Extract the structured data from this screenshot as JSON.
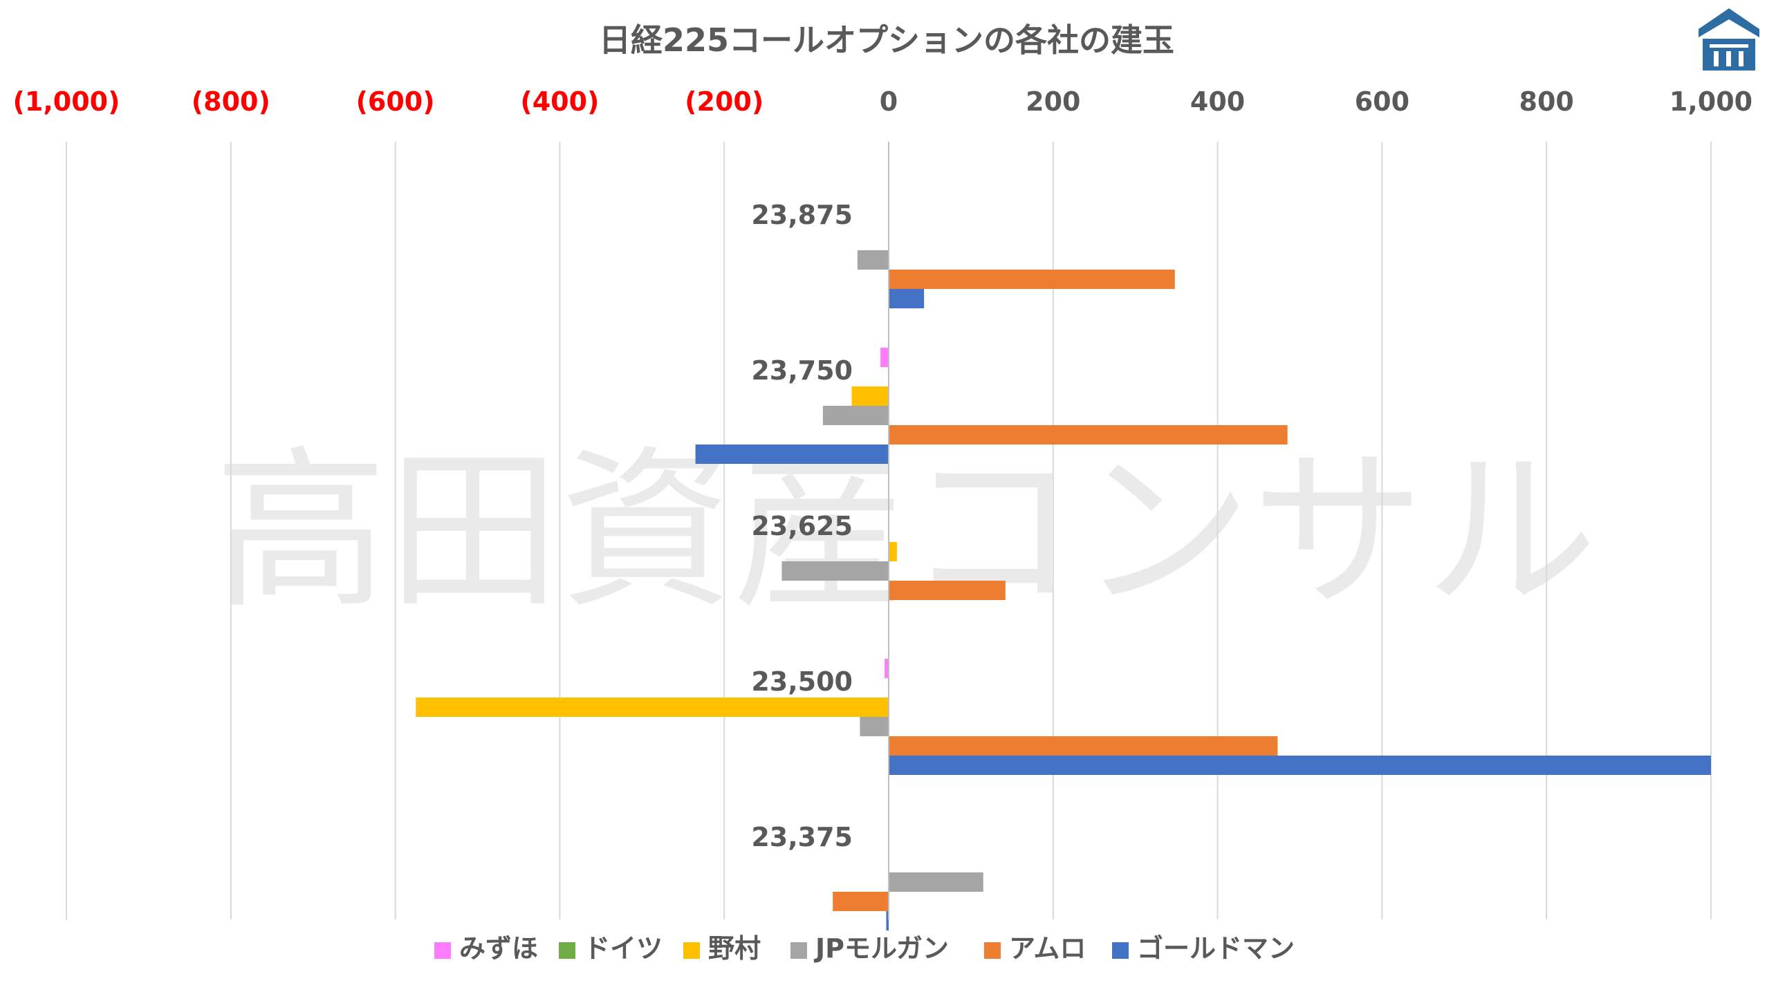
{
  "watermark": "高田資産コンサル",
  "logo": {
    "name": "takada-logo-icon",
    "color": "#2e6da4"
  },
  "chart_data": {
    "type": "bar",
    "orientation": "horizontal",
    "title": "日経225コールオプションの各社の建玉",
    "xlim": [
      -1000,
      1000
    ],
    "x_ticks": [
      -1000,
      -800,
      -600,
      -400,
      -200,
      0,
      200,
      400,
      600,
      800,
      1000
    ],
    "x_tick_labels": [
      "(1,000)",
      "(800)",
      "(600)",
      "(400)",
      "(200)",
      "0",
      "200",
      "400",
      "600",
      "800",
      "1,000"
    ],
    "x_axis_position": "top",
    "negative_tick_color": "#ff0000",
    "positive_tick_color": "#595959",
    "grid": "vertical",
    "legend_position": "bottom",
    "categories": [
      "23,875",
      "23,750",
      "23,625",
      "23,500",
      "23,375"
    ],
    "series": [
      {
        "name": "みずほ",
        "color": "#ff7cff",
        "values": [
          0,
          -10,
          0,
          -5,
          0
        ]
      },
      {
        "name": "ドイツ",
        "color": "#70ad47",
        "values": [
          0,
          0,
          0,
          0,
          0
        ]
      },
      {
        "name": "野村",
        "color": "#ffc000",
        "values": [
          0,
          -45,
          10,
          -575,
          0
        ]
      },
      {
        "name": "JPモルガン",
        "color": "#a5a5a5",
        "values": [
          -38,
          -80,
          -130,
          -35,
          115
        ]
      },
      {
        "name": "アムロ",
        "color": "#ed7d31",
        "values": [
          348,
          485,
          142,
          473,
          -68
        ]
      },
      {
        "name": "ゴールドマン",
        "color": "#4472c4",
        "values": [
          43,
          -235,
          0,
          1000,
          -3
        ]
      }
    ]
  }
}
